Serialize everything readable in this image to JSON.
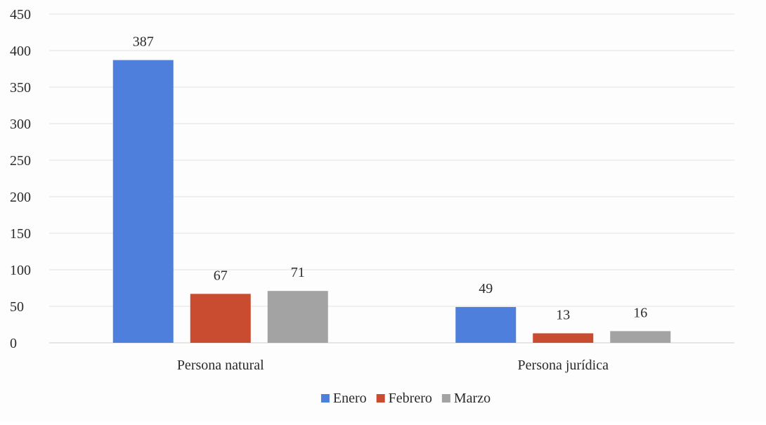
{
  "chart_data": {
    "type": "bar",
    "title": "",
    "xlabel": "",
    "ylabel": "",
    "categories": [
      "Persona natural",
      "Persona jurídica"
    ],
    "series": [
      {
        "name": "Enero",
        "color": "#4f7fdc",
        "values": [
          387,
          49
        ]
      },
      {
        "name": "Febrero",
        "color": "#c94b30",
        "values": [
          67,
          13
        ]
      },
      {
        "name": "Marzo",
        "color": "#a3a3a3",
        "values": [
          71,
          16
        ]
      }
    ],
    "ylim": [
      0,
      450
    ],
    "yticks": [
      0,
      50,
      100,
      150,
      200,
      250,
      300,
      350,
      400,
      450
    ],
    "grid": true,
    "legend_position": "bottom-center"
  }
}
